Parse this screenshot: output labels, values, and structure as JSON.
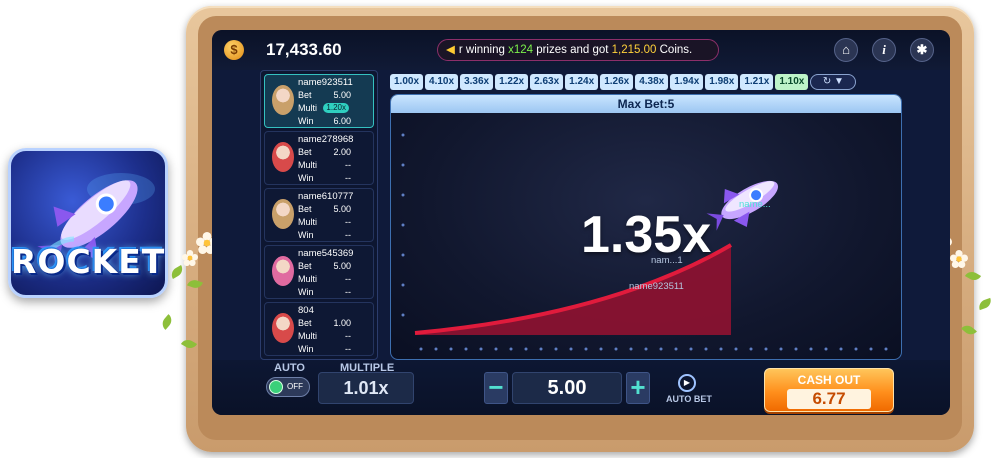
{
  "logo": {
    "text": "ROCKET"
  },
  "topbar": {
    "balance": "17,433.60",
    "ticker": {
      "prefix": "r winning ",
      "count": "x124",
      "middle": " prizes and got ",
      "amount": "1,215.00",
      "suffix": " Coins."
    },
    "icons": [
      "home-icon",
      "info-icon",
      "gear-icon"
    ]
  },
  "players": [
    {
      "name": "name923511",
      "bet": "5.00",
      "multi": "1.20x",
      "win": "6.00",
      "active": true,
      "avatar_color": "#c9a06a"
    },
    {
      "name": "name278968",
      "bet": "2.00",
      "multi": "--",
      "win": "--",
      "active": false,
      "avatar_color": "#d84a4a"
    },
    {
      "name": "name610777",
      "bet": "5.00",
      "multi": "--",
      "win": "--",
      "active": false,
      "avatar_color": "#c9a06a"
    },
    {
      "name": "name545369",
      "bet": "5.00",
      "multi": "--",
      "win": "--",
      "active": false,
      "avatar_color": "#e06aa0"
    },
    {
      "name": "804",
      "bet": "1.00",
      "multi": "--",
      "win": "--",
      "active": false,
      "avatar_color": "#d84a4a"
    }
  ],
  "labels": {
    "bet": "Bet",
    "multi": "Multi",
    "win": "Win"
  },
  "history": [
    "1.00x",
    "4.10x",
    "3.36x",
    "1.22x",
    "2.63x",
    "1.24x",
    "1.26x",
    "4.38x",
    "1.94x",
    "1.98x",
    "1.21x",
    "1.10x"
  ],
  "game": {
    "max_bet": "Max Bet:5",
    "multiplier": "1.35x",
    "overlay_top": "name...",
    "overlay_mid": "nam...1",
    "overlay_low": "name923511"
  },
  "bottom": {
    "auto_label": "AUTO",
    "toggle_text": "OFF",
    "multiple_label": "MULTIPLE",
    "multiple_value": "1.01x",
    "bet_value": "5.00",
    "minus": "−",
    "plus": "+",
    "autobet_label": "AUTO BET",
    "cashout_label": "CASH OUT",
    "cashout_value": "6.77"
  },
  "colors": {
    "accent_teal": "#35c1c1",
    "cashout_orange": "#ff8f1c",
    "curve_red": "#e01b3c",
    "frame_wood": "#d9b083"
  }
}
